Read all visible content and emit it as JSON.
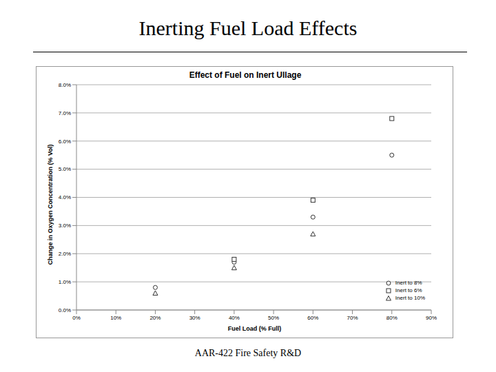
{
  "title": "Inerting Fuel Load Effects",
  "footer": "AAR-422 Fire Safety R&D",
  "chart_data": {
    "type": "scatter",
    "title": "Effect of Fuel on Inert Ullage",
    "x_label": "Fuel Load (% Full)",
    "y_label": "Change in Oxygen Concentration (% Vol)",
    "x": [
      20,
      40,
      60,
      80
    ],
    "series": [
      {
        "name": "Inert to 8%",
        "color": "#333333",
        "marker": "circle",
        "values": [
          0.8,
          1.7,
          3.3,
          5.5
        ]
      },
      {
        "name": "Inert to 6%",
        "color": "#333333",
        "marker": "square",
        "values": [
          null,
          1.8,
          3.9,
          6.8
        ]
      },
      {
        "name": "Inert to 10%",
        "color": "#333333",
        "marker": "triangle",
        "values": [
          0.6,
          1.5,
          2.7,
          null
        ]
      }
    ],
    "xlim": [
      0,
      90
    ],
    "xticks": [
      {
        "value": 0,
        "label": "0%"
      },
      {
        "value": 10,
        "label": "10%"
      },
      {
        "value": 20,
        "label": "20%"
      },
      {
        "value": 30,
        "label": "30%"
      },
      {
        "value": 40,
        "label": "40%"
      },
      {
        "value": 50,
        "label": "50%"
      },
      {
        "value": 60,
        "label": "60%"
      },
      {
        "value": 70,
        "label": "70%"
      },
      {
        "value": 80,
        "label": "80%"
      },
      {
        "value": 90,
        "label": "90%"
      }
    ],
    "ylim": [
      0,
      8
    ],
    "yticks": [
      {
        "value": 0,
        "label": "0.0%"
      },
      {
        "value": 1,
        "label": "1.0%"
      },
      {
        "value": 2,
        "label": "2.0%"
      },
      {
        "value": 3,
        "label": "3.0%"
      },
      {
        "value": 4,
        "label": "4.0%"
      },
      {
        "value": 5,
        "label": "5.0%"
      },
      {
        "value": 6,
        "label": "6.0%"
      },
      {
        "value": 7,
        "label": "7.0%"
      },
      {
        "value": 8,
        "label": "8.0%"
      }
    ],
    "grid": true,
    "legend": "lower right"
  }
}
